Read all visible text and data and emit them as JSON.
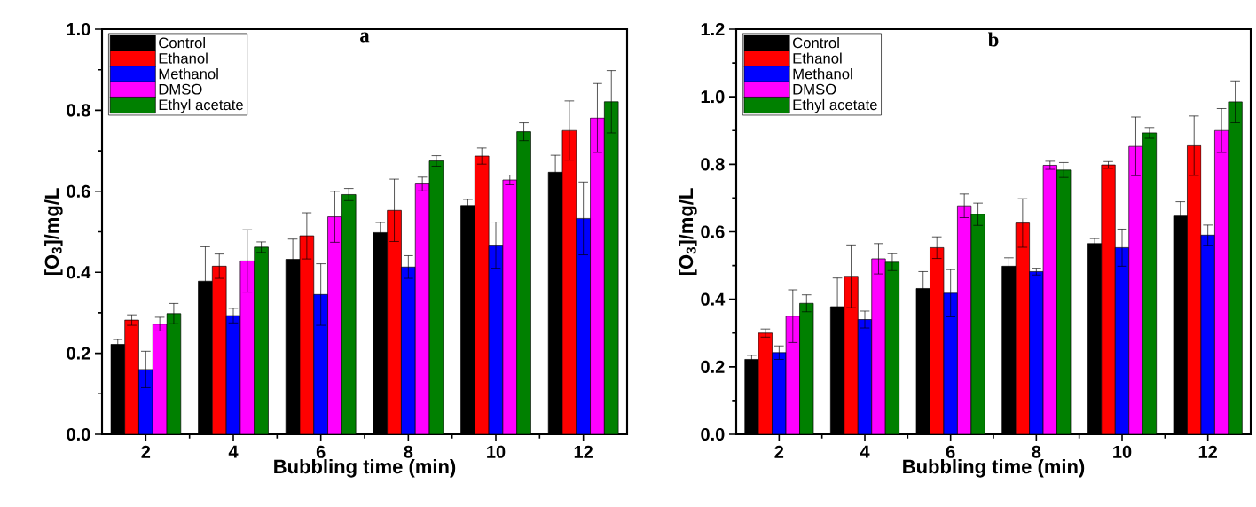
{
  "chart_data": [
    {
      "type": "bar",
      "title": "a",
      "xlabel": "Bubbling time (min)",
      "ylabel": "[O$_{3}$]/mg/L",
      "categories": [
        "2",
        "4",
        "6",
        "8",
        "10",
        "12"
      ],
      "ylim": [
        0,
        1.0
      ],
      "yticks": [
        {
          "value": 0,
          "label": "0.0"
        },
        {
          "value": 0.2,
          "label": "0.2"
        },
        {
          "value": 0.4,
          "label": "0.4"
        },
        {
          "value": 0.6,
          "label": "0.6"
        },
        {
          "value": 0.8,
          "label": "0.8"
        },
        {
          "value": 1.0,
          "label": "1.0"
        }
      ],
      "legend": "top left",
      "series": [
        {
          "name": "Control",
          "color": "#000000",
          "values": [
            0.222,
            0.378,
            0.432,
            0.498,
            0.565,
            0.647
          ],
          "errors": [
            0.012,
            0.085,
            0.05,
            0.025,
            0.015,
            0.042
          ]
        },
        {
          "name": "Ethanol",
          "color": "#ff0000",
          "values": [
            0.282,
            0.415,
            0.49,
            0.553,
            0.687,
            0.75
          ],
          "errors": [
            0.013,
            0.03,
            0.057,
            0.077,
            0.02,
            0.073
          ]
        },
        {
          "name": "Methanol",
          "color": "#0000ff",
          "values": [
            0.16,
            0.293,
            0.345,
            0.413,
            0.467,
            0.533
          ],
          "errors": [
            0.045,
            0.018,
            0.076,
            0.028,
            0.057,
            0.09
          ]
        },
        {
          "name": "DMSO",
          "color": "#ff00ff",
          "values": [
            0.272,
            0.428,
            0.537,
            0.618,
            0.628,
            0.781
          ],
          "errors": [
            0.017,
            0.077,
            0.063,
            0.017,
            0.012,
            0.085
          ]
        },
        {
          "name": "Ethyl acetate",
          "color": "#008000",
          "values": [
            0.298,
            0.462,
            0.592,
            0.675,
            0.747,
            0.821
          ],
          "errors": [
            0.025,
            0.013,
            0.015,
            0.013,
            0.022,
            0.077
          ]
        }
      ]
    },
    {
      "type": "bar",
      "title": "b",
      "xlabel": "Bubbling time (min)",
      "ylabel": "[O$_{3}$]/mg/L",
      "categories": [
        "2",
        "4",
        "6",
        "8",
        "10",
        "12"
      ],
      "ylim": [
        0,
        1.2
      ],
      "yticks": [
        {
          "value": 0,
          "label": "0.0"
        },
        {
          "value": 0.2,
          "label": "0.2"
        },
        {
          "value": 0.4,
          "label": "0.4"
        },
        {
          "value": 0.6,
          "label": "0.6"
        },
        {
          "value": 0.8,
          "label": "0.8"
        },
        {
          "value": 1.0,
          "label": "1.0"
        },
        {
          "value": 1.2,
          "label": "1.2"
        }
      ],
      "legend": "top left",
      "series": [
        {
          "name": "Control",
          "color": "#000000",
          "values": [
            0.222,
            0.378,
            0.432,
            0.498,
            0.565,
            0.647
          ],
          "errors": [
            0.012,
            0.085,
            0.05,
            0.025,
            0.015,
            0.042
          ]
        },
        {
          "name": "Ethanol",
          "color": "#ff0000",
          "values": [
            0.3,
            0.468,
            0.553,
            0.626,
            0.798,
            0.855
          ],
          "errors": [
            0.012,
            0.093,
            0.032,
            0.072,
            0.01,
            0.088
          ]
        },
        {
          "name": "Methanol",
          "color": "#0000ff",
          "values": [
            0.242,
            0.34,
            0.418,
            0.482,
            0.553,
            0.59
          ],
          "errors": [
            0.02,
            0.025,
            0.07,
            0.01,
            0.055,
            0.03
          ]
        },
        {
          "name": "DMSO",
          "color": "#ff00ff",
          "values": [
            0.35,
            0.52,
            0.677,
            0.797,
            0.853,
            0.9
          ],
          "errors": [
            0.078,
            0.045,
            0.035,
            0.012,
            0.087,
            0.065
          ]
        },
        {
          "name": "Ethyl acetate",
          "color": "#008000",
          "values": [
            0.388,
            0.51,
            0.652,
            0.783,
            0.893,
            0.985
          ],
          "errors": [
            0.025,
            0.025,
            0.033,
            0.022,
            0.016,
            0.062
          ]
        }
      ]
    }
  ]
}
